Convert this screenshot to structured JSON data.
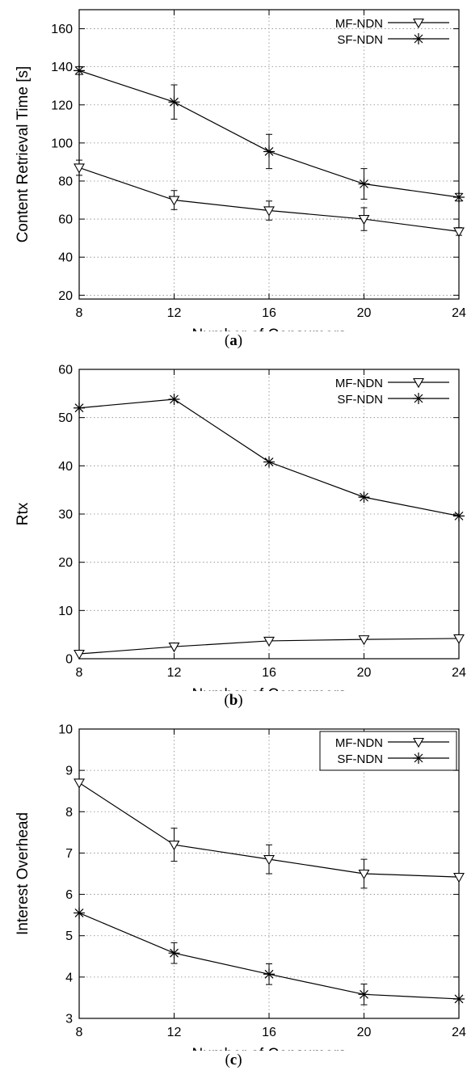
{
  "chart_data": [
    {
      "type": "line",
      "panel_label": "a",
      "xlabel": "Number of Consumers",
      "ylabel": "Content Retrieval Time [s]",
      "x": [
        8,
        12,
        16,
        20,
        24
      ],
      "xticks": [
        8,
        12,
        16,
        20,
        24
      ],
      "xlim": [
        8,
        24
      ],
      "ylim": [
        18,
        170
      ],
      "yticks": [
        20,
        40,
        60,
        80,
        100,
        120,
        140,
        160
      ],
      "grid": true,
      "legend_position": "top-right",
      "legend_boxed": false,
      "series": [
        {
          "name": "MF-NDN",
          "marker": "triangle-down",
          "values": [
            87,
            70,
            64.5,
            60,
            53.5
          ],
          "err": [
            4,
            5,
            5,
            6,
            2
          ]
        },
        {
          "name": "SF-NDN",
          "marker": "star",
          "values": [
            138,
            121.5,
            95.5,
            78.5,
            71.5
          ],
          "err": [
            2,
            9,
            9,
            8,
            2
          ]
        }
      ]
    },
    {
      "type": "line",
      "panel_label": "b",
      "xlabel": "Number of Consumers",
      "ylabel": "Rtx",
      "x": [
        8,
        12,
        16,
        20,
        24
      ],
      "xticks": [
        8,
        12,
        16,
        20,
        24
      ],
      "xlim": [
        8,
        24
      ],
      "ylim": [
        0,
        60
      ],
      "yticks": [
        0,
        10,
        20,
        30,
        40,
        50,
        60
      ],
      "grid": true,
      "legend_position": "top-right",
      "legend_boxed": false,
      "series": [
        {
          "name": "MF-NDN",
          "marker": "triangle-down",
          "values": [
            1,
            2.5,
            3.7,
            4,
            4.2
          ],
          "err": [
            0,
            0,
            0,
            0,
            0
          ]
        },
        {
          "name": "SF-NDN",
          "marker": "star",
          "values": [
            52,
            53.8,
            40.8,
            33.5,
            29.6
          ],
          "err": [
            0,
            0,
            0,
            0,
            0
          ]
        }
      ]
    },
    {
      "type": "line",
      "panel_label": "c",
      "xlabel": "Number of Consumers",
      "ylabel": "Interest Overhead",
      "x": [
        8,
        12,
        16,
        20,
        24
      ],
      "xticks": [
        8,
        12,
        16,
        20,
        24
      ],
      "xlim": [
        8,
        24
      ],
      "ylim": [
        3,
        10
      ],
      "yticks": [
        3,
        4,
        5,
        6,
        7,
        8,
        9,
        10
      ],
      "grid": true,
      "legend_position": "top-right",
      "legend_boxed": true,
      "series": [
        {
          "name": "MF-NDN",
          "marker": "triangle-down",
          "values": [
            8.7,
            7.2,
            6.85,
            6.5,
            6.42
          ],
          "err": [
            0,
            0.4,
            0.35,
            0.35,
            0
          ]
        },
        {
          "name": "SF-NDN",
          "marker": "star",
          "values": [
            5.55,
            4.58,
            4.07,
            3.58,
            3.47
          ],
          "err": [
            0,
            0.25,
            0.25,
            0.25,
            0
          ]
        }
      ]
    }
  ],
  "captions": [
    "a",
    "b",
    "c"
  ]
}
